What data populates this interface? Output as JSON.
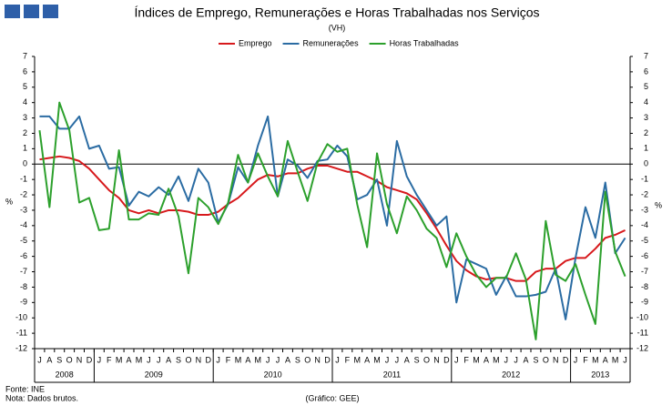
{
  "chart_data": {
    "type": "line",
    "title": "Índices de Emprego, Remunerações e Horas Trabalhadas nos Serviços",
    "subtitle": "(VH)",
    "y_label": "%",
    "y2_label": "%",
    "source": "Fonte: INE",
    "note": "Nota: Dados brutos.",
    "credit": "(Gráfico: GEE)",
    "categories": [
      "J",
      "A",
      "S",
      "O",
      "N",
      "D",
      "J",
      "F",
      "M",
      "A",
      "M",
      "J",
      "J",
      "A",
      "S",
      "O",
      "N",
      "D",
      "J",
      "F",
      "M",
      "A",
      "M",
      "J",
      "J",
      "A",
      "S",
      "O",
      "N",
      "D",
      "J",
      "F",
      "M",
      "A",
      "M",
      "J",
      "J",
      "A",
      "S",
      "O",
      "N",
      "D",
      "J",
      "F",
      "M",
      "A",
      "M",
      "J",
      "J",
      "A",
      "S",
      "O",
      "N",
      "D",
      "J",
      "F",
      "M",
      "A",
      "M",
      "J"
    ],
    "years": [
      "2008",
      "2009",
      "2010",
      "2011",
      "2012",
      "2013"
    ],
    "ylim": [
      -12,
      7
    ],
    "yticks": [
      -12,
      -11,
      -10,
      -9,
      -8,
      -7,
      -6,
      -5,
      -4,
      -3,
      -2,
      -1,
      0,
      1,
      2,
      3,
      4,
      5,
      6,
      7
    ],
    "y2lim": [
      -12,
      7
    ],
    "y2ticks": [
      -12,
      -11,
      -10,
      -9,
      -8,
      -7,
      -6,
      -5,
      -4,
      -3,
      -2,
      -1,
      0,
      1,
      2,
      3,
      4,
      5,
      6,
      7
    ],
    "series": [
      {
        "name": "Emprego",
        "color": "#d7191c",
        "values": [
          0.3,
          0.4,
          0.5,
          0.4,
          0.2,
          -0.3,
          -1.0,
          -1.7,
          -2.2,
          -3.0,
          -3.2,
          -3.0,
          -3.2,
          -3.0,
          -3.0,
          -3.1,
          -3.3,
          -3.3,
          -3.1,
          -2.6,
          -2.2,
          -1.6,
          -1.0,
          -0.7,
          -0.8,
          -0.6,
          -0.6,
          -0.3,
          -0.1,
          -0.1,
          -0.3,
          -0.5,
          -0.5,
          -0.8,
          -1.1,
          -1.5,
          -1.7,
          -1.9,
          -2.3,
          -3.2,
          -4.2,
          -5.3,
          -6.3,
          -6.9,
          -7.3,
          -7.5,
          -7.4,
          -7.4,
          -7.6,
          -7.6,
          -7.0,
          -6.8,
          -6.8,
          -6.3,
          -6.1,
          -6.1,
          -5.5,
          -4.8,
          -4.6,
          -4.3
        ]
      },
      {
        "name": "Remunerações",
        "color": "#2b6ca3",
        "values": [
          3.1,
          3.1,
          2.3,
          2.3,
          3.1,
          1.0,
          1.2,
          -0.3,
          -0.2,
          -2.7,
          -1.8,
          -2.1,
          -1.5,
          -2.0,
          -0.8,
          -2.4,
          -0.3,
          -1.2,
          -3.8,
          -2.6,
          -0.2,
          -1.2,
          1.2,
          3.1,
          -2.1,
          0.3,
          -0.1,
          -0.9,
          0.2,
          0.3,
          1.2,
          0.5,
          -2.3,
          -2.0,
          -1.0,
          -4.0,
          1.5,
          -0.8,
          -2.0,
          -3.0,
          -4.0,
          -3.4,
          -9.0,
          -6.2,
          -6.5,
          -6.8,
          -8.5,
          -7.3,
          -8.6,
          -8.6,
          -8.5,
          -8.3,
          -6.8,
          -10.1,
          -6.1,
          -2.8,
          -4.8,
          -1.2,
          -5.8,
          -4.8
        ]
      },
      {
        "name": "Horas Trabalhadas",
        "color": "#2ca02c",
        "values": [
          2.2,
          -2.8,
          4.0,
          2.2,
          -2.5,
          -2.2,
          -4.3,
          -4.2,
          0.9,
          -3.6,
          -3.6,
          -3.2,
          -3.3,
          -1.6,
          -3.4,
          -7.1,
          -2.2,
          -2.8,
          -3.9,
          -2.5,
          0.6,
          -1.2,
          0.7,
          -0.8,
          -2.1,
          1.5,
          -0.5,
          -2.4,
          0.1,
          1.3,
          0.8,
          1.0,
          -2.6,
          -5.4,
          0.7,
          -2.6,
          -4.5,
          -2.1,
          -3.0,
          -4.2,
          -4.8,
          -6.7,
          -4.5,
          -6.0,
          -7.2,
          -8.0,
          -7.4,
          -7.4,
          -5.8,
          -7.5,
          -11.4,
          -3.7,
          -7.2,
          -7.6,
          -6.5,
          -8.5,
          -10.4,
          -1.8,
          -5.7,
          -7.3
        ]
      }
    ]
  }
}
